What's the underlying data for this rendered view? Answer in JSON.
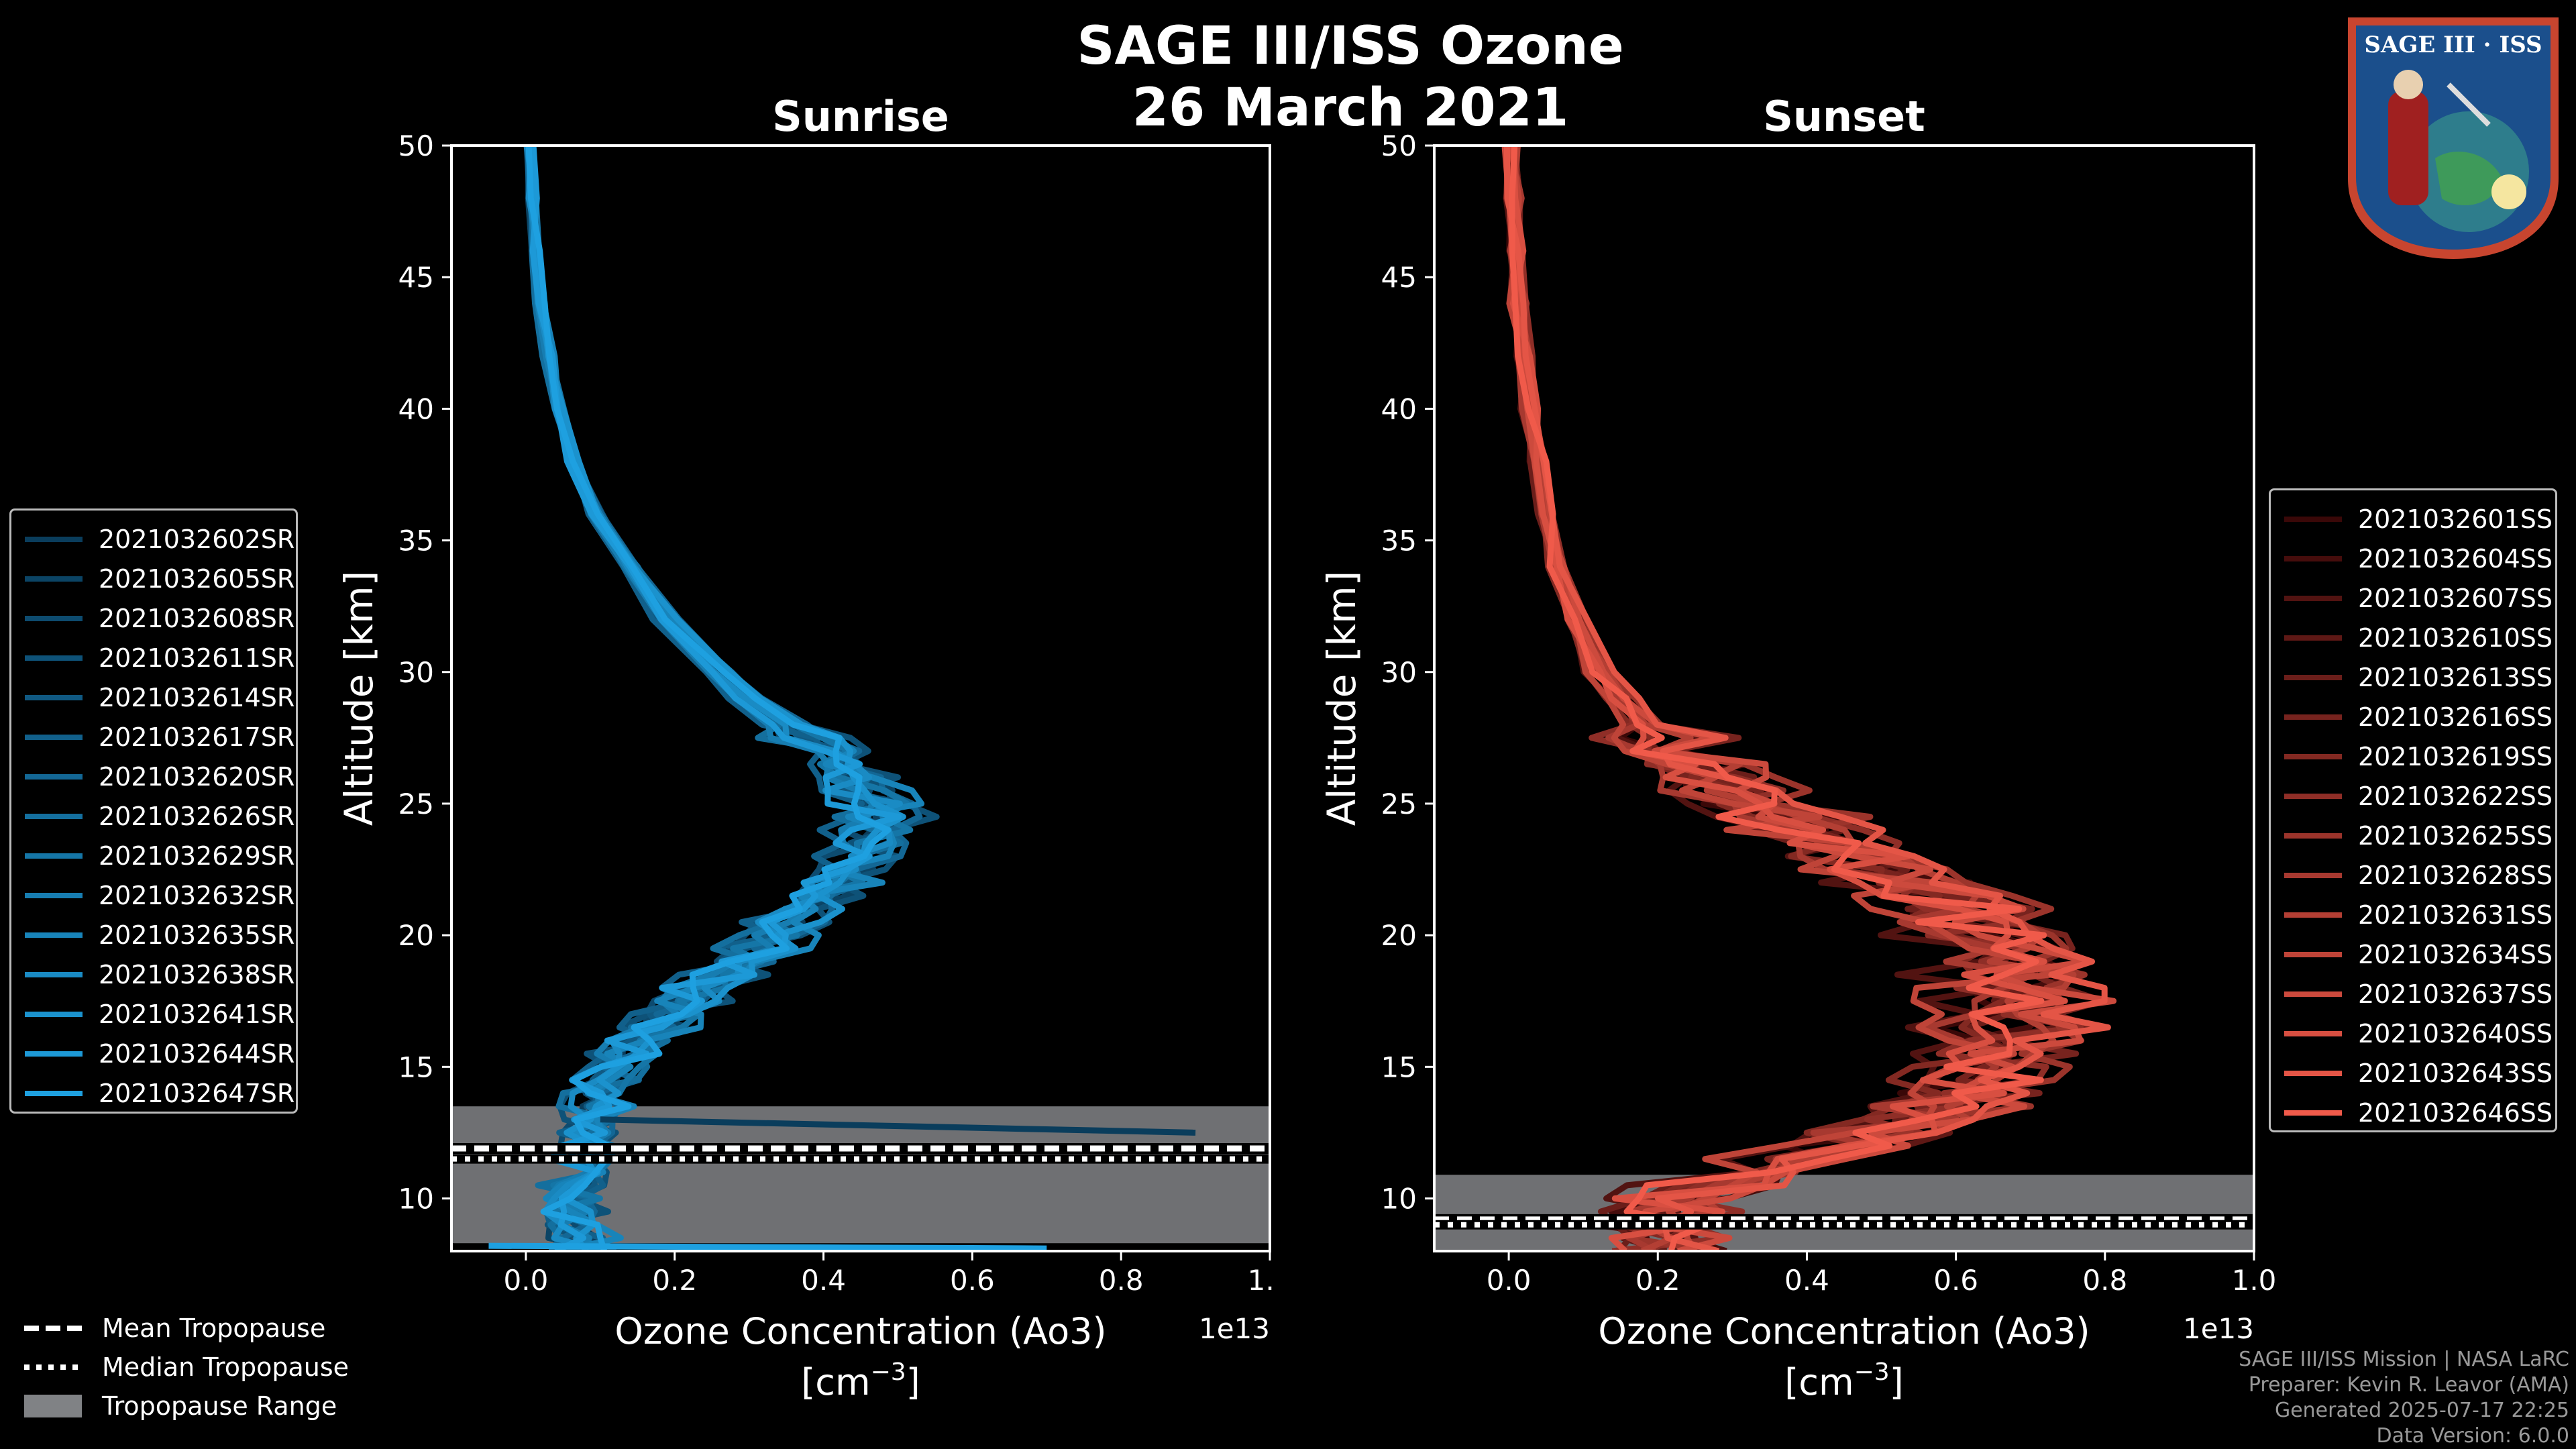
{
  "figure": {
    "title_line1": "SAGE III/ISS Ozone",
    "title_line2": "26 March 2021",
    "logo_text": "SAGE III · ISS"
  },
  "credits": [
    "SAGE III/ISS Mission | NASA LaRC",
    "Preparer: Kevin R. Leavor (AMA)",
    "Generated 2025-07-17 22:25",
    "Data Version: 6.0.0"
  ],
  "bottom_legend": [
    {
      "label": "Mean Tropopause",
      "style": "dashed"
    },
    {
      "label": "Median Tropopause",
      "style": "dotted"
    },
    {
      "label": "Tropopause Range",
      "style": "patch"
    }
  ],
  "chart_data": [
    {
      "type": "line",
      "title": "Sunrise",
      "xlabel": "Ozone Concentration (Ao3)",
      "xunit": "[cm",
      "xunit_sup": "−3",
      "xunit_close": "]",
      "xscale_label": "1e13",
      "ylabel": "Altitude [km]",
      "xlim": [
        -0.1,
        1.0
      ],
      "ylim": [
        8,
        50
      ],
      "xticks": [
        0.0,
        0.2,
        0.4,
        0.6,
        0.8,
        1.0
      ],
      "xtick_labels": [
        "0.0",
        "0.2",
        "0.4",
        "0.6",
        "0.8",
        "1.0"
      ],
      "yticks": [
        10,
        15,
        20,
        25,
        30,
        35,
        40,
        45,
        50
      ],
      "tropopause": {
        "mean": 11.9,
        "median": 11.5,
        "range": [
          8.3,
          13.5
        ]
      },
      "color_start": "#0a3d5c",
      "color_end": "#1ea0e0",
      "base_profile": {
        "alt": [
          8,
          9,
          10,
          11,
          12,
          13,
          14,
          15,
          16,
          17,
          18,
          19,
          20,
          21,
          22,
          23,
          24,
          25,
          26,
          27,
          28,
          29,
          30,
          32,
          34,
          36,
          38,
          40,
          42,
          44,
          46,
          48,
          50
        ],
        "conc": [
          0.08,
          0.07,
          0.06,
          0.07,
          0.08,
          0.09,
          0.1,
          0.12,
          0.15,
          0.19,
          0.24,
          0.29,
          0.34,
          0.38,
          0.42,
          0.45,
          0.47,
          0.47,
          0.44,
          0.4,
          0.35,
          0.3,
          0.26,
          0.19,
          0.14,
          0.095,
          0.065,
          0.045,
          0.03,
          0.02,
          0.013,
          0.008,
          0.005
        ]
      },
      "series": [
        {
          "name": "2021032602SR",
          "scale": 0.98,
          "jitter": 0.03
        },
        {
          "name": "2021032605SR",
          "scale": 1.02,
          "jitter": 0.04
        },
        {
          "name": "2021032608SR",
          "scale": 0.95,
          "jitter": 0.03
        },
        {
          "name": "2021032611SR",
          "scale": 1.05,
          "jitter": 0.05
        },
        {
          "name": "2021032614SR",
          "scale": 1.0,
          "jitter": 0.03
        },
        {
          "name": "2021032617SR",
          "scale": 0.92,
          "jitter": 0.04
        },
        {
          "name": "2021032620SR",
          "scale": 1.07,
          "jitter": 0.03
        },
        {
          "name": "2021032626SR",
          "scale": 0.97,
          "jitter": 0.05
        },
        {
          "name": "2021032629SR",
          "scale": 1.03,
          "jitter": 0.04
        },
        {
          "name": "2021032632SR",
          "scale": 0.94,
          "jitter": 0.03
        },
        {
          "name": "2021032635SR",
          "scale": 1.04,
          "jitter": 0.05
        },
        {
          "name": "2021032638SR",
          "scale": 0.99,
          "jitter": 0.04
        },
        {
          "name": "2021032641SR",
          "scale": 1.06,
          "jitter": 0.03
        },
        {
          "name": "2021032644SR",
          "scale": 0.96,
          "jitter": 0.05
        },
        {
          "name": "2021032647SR",
          "scale": 1.01,
          "jitter": 0.04
        }
      ],
      "outlier": {
        "from": [
          0.1,
          13.0
        ],
        "to": [
          0.9,
          12.5
        ]
      },
      "outlier_low": {
        "from": [
          -0.05,
          8.2
        ],
        "to": [
          0.7,
          8.1
        ]
      }
    },
    {
      "type": "line",
      "title": "Sunset",
      "xlabel": "Ozone Concentration (Ao3)",
      "xunit": "[cm",
      "xunit_sup": "−3",
      "xunit_close": "]",
      "xscale_label": "1e13",
      "ylabel": "Altitude [km]",
      "xlim": [
        -0.1,
        1.0
      ],
      "ylim": [
        8,
        50
      ],
      "xticks": [
        0.0,
        0.2,
        0.4,
        0.6,
        0.8,
        1.0
      ],
      "xtick_labels": [
        "0.0",
        "0.2",
        "0.4",
        "0.6",
        "0.8",
        "1.0"
      ],
      "yticks": [
        10,
        15,
        20,
        25,
        30,
        35,
        40,
        45,
        50
      ],
      "tropopause": {
        "mean": 9.2,
        "median": 9.0,
        "range": [
          8.0,
          10.9
        ]
      },
      "color_start": "#3a0808",
      "color_end": "#f05a4a",
      "base_profile": {
        "alt": [
          8,
          9,
          10,
          11,
          12,
          13,
          14,
          15,
          16,
          17,
          18,
          19,
          20,
          21,
          22,
          23,
          24,
          25,
          26,
          27,
          28,
          29,
          30,
          32,
          34,
          36,
          38,
          40,
          42,
          44,
          46,
          48,
          50
        ],
        "conc": [
          0.22,
          0.2,
          0.22,
          0.32,
          0.45,
          0.55,
          0.6,
          0.64,
          0.66,
          0.68,
          0.68,
          0.67,
          0.64,
          0.6,
          0.54,
          0.47,
          0.4,
          0.33,
          0.27,
          0.22,
          0.18,
          0.15,
          0.12,
          0.09,
          0.065,
          0.05,
          0.038,
          0.028,
          0.02,
          0.014,
          0.01,
          0.006,
          0.004
        ]
      },
      "series": [
        {
          "name": "2021032601SS",
          "scale": 0.95,
          "jitter": 0.06
        },
        {
          "name": "2021032604SS",
          "scale": 1.02,
          "jitter": 0.07
        },
        {
          "name": "2021032607SS",
          "scale": 0.9,
          "jitter": 0.08
        },
        {
          "name": "2021032610SS",
          "scale": 1.05,
          "jitter": 0.06
        },
        {
          "name": "2021032613SS",
          "scale": 0.98,
          "jitter": 0.07
        },
        {
          "name": "2021032616SS",
          "scale": 1.08,
          "jitter": 0.08
        },
        {
          "name": "2021032619SS",
          "scale": 0.93,
          "jitter": 0.06
        },
        {
          "name": "2021032622SS",
          "scale": 1.0,
          "jitter": 0.09
        },
        {
          "name": "2021032625SS",
          "scale": 1.1,
          "jitter": 0.07
        },
        {
          "name": "2021032628SS",
          "scale": 0.96,
          "jitter": 0.08
        },
        {
          "name": "2021032631SS",
          "scale": 1.04,
          "jitter": 0.06
        },
        {
          "name": "2021032634SS",
          "scale": 0.92,
          "jitter": 0.09
        },
        {
          "name": "2021032637SS",
          "scale": 1.07,
          "jitter": 0.07
        },
        {
          "name": "2021032640SS",
          "scale": 0.99,
          "jitter": 0.08
        },
        {
          "name": "2021032643SS",
          "scale": 1.12,
          "jitter": 0.06
        },
        {
          "name": "2021032646SS",
          "scale": 1.01,
          "jitter": 0.08
        }
      ]
    }
  ]
}
